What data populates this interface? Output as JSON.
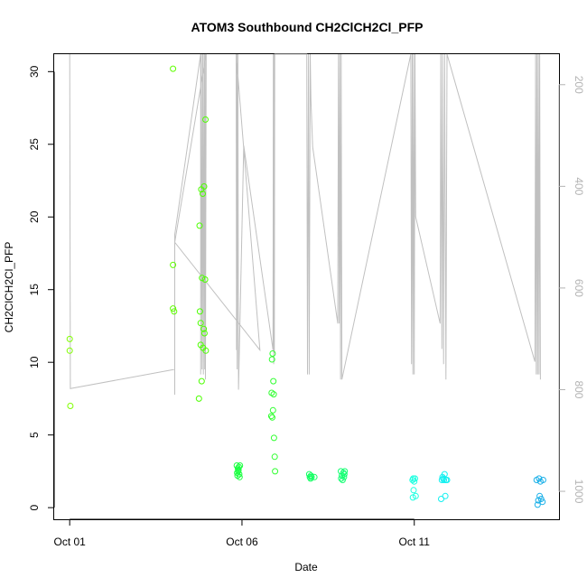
{
  "chart_data": {
    "type": "scatter",
    "title": "ATOM3 Southbound CH2ClCH2Cl_PFP",
    "xlabel": "Date",
    "ylabel": "CH2ClCH2Cl_PFP",
    "x_start_label": "Oct 01",
    "xlim_days": [
      -0.45,
      14.2
    ],
    "ylim": [
      -0.8,
      31.2
    ],
    "y_ticks": [
      0,
      5,
      10,
      15,
      20,
      25,
      30
    ],
    "x_ticks": [
      {
        "label": "Oct 01",
        "day": 0
      },
      {
        "label": "Oct 06",
        "day": 5
      },
      {
        "label": "Oct 11",
        "day": 10
      }
    ],
    "right_axis": {
      "description": "pressure (reversed)",
      "lim": [
        1055,
        140
      ],
      "ticks": [
        200,
        400,
        600,
        800,
        1000
      ],
      "color": "#b3b3b3"
    },
    "grid": false,
    "points": [
      {
        "day": 0.0,
        "y": 11.6,
        "color": "#80ff00"
      },
      {
        "day": 0.0,
        "y": 10.8,
        "color": "#80ff00"
      },
      {
        "day": 0.02,
        "y": 7.0,
        "color": "#80ff00"
      },
      {
        "day": 3.0,
        "y": 30.2,
        "color": "#5eff00"
      },
      {
        "day": 3.0,
        "y": 16.7,
        "color": "#5eff00"
      },
      {
        "day": 3.0,
        "y": 13.7,
        "color": "#5eff00"
      },
      {
        "day": 3.03,
        "y": 13.5,
        "color": "#5eff00"
      },
      {
        "day": 3.75,
        "y": 7.5,
        "color": "#4cff00"
      },
      {
        "day": 3.77,
        "y": 19.4,
        "color": "#4cff00"
      },
      {
        "day": 3.78,
        "y": 13.5,
        "color": "#4cff00"
      },
      {
        "day": 3.8,
        "y": 12.7,
        "color": "#4cff00"
      },
      {
        "day": 3.8,
        "y": 11.2,
        "color": "#4cff00"
      },
      {
        "day": 3.82,
        "y": 21.9,
        "color": "#4cff00"
      },
      {
        "day": 3.83,
        "y": 8.7,
        "color": "#4cff00"
      },
      {
        "day": 3.84,
        "y": 15.8,
        "color": "#4cff00"
      },
      {
        "day": 3.86,
        "y": 21.6,
        "color": "#4cff00"
      },
      {
        "day": 3.87,
        "y": 11.0,
        "color": "#4cff00"
      },
      {
        "day": 3.89,
        "y": 12.3,
        "color": "#4cff00"
      },
      {
        "day": 3.9,
        "y": 22.1,
        "color": "#4cff00"
      },
      {
        "day": 3.91,
        "y": 12.0,
        "color": "#4cff00"
      },
      {
        "day": 3.93,
        "y": 15.7,
        "color": "#4cff00"
      },
      {
        "day": 3.94,
        "y": 26.7,
        "color": "#4cff00"
      },
      {
        "day": 3.95,
        "y": 10.8,
        "color": "#4cff00"
      },
      {
        "day": 4.85,
        "y": 2.9,
        "color": "#1aff40"
      },
      {
        "day": 4.86,
        "y": 2.4,
        "color": "#1aff40"
      },
      {
        "day": 4.87,
        "y": 2.2,
        "color": "#1aff40"
      },
      {
        "day": 4.88,
        "y": 2.7,
        "color": "#1aff40"
      },
      {
        "day": 4.89,
        "y": 2.5,
        "color": "#1aff40"
      },
      {
        "day": 4.9,
        "y": 2.6,
        "color": "#1aff40"
      },
      {
        "day": 4.91,
        "y": 2.8,
        "color": "#1aff40"
      },
      {
        "day": 4.92,
        "y": 2.3,
        "color": "#1aff40"
      },
      {
        "day": 4.93,
        "y": 2.1,
        "color": "#1aff40"
      },
      {
        "day": 4.94,
        "y": 2.9,
        "color": "#1aff40"
      },
      {
        "day": 5.85,
        "y": 6.3,
        "color": "#30ff30"
      },
      {
        "day": 5.86,
        "y": 7.9,
        "color": "#30ff30"
      },
      {
        "day": 5.87,
        "y": 10.2,
        "color": "#30ff30"
      },
      {
        "day": 5.88,
        "y": 6.2,
        "color": "#30ff30"
      },
      {
        "day": 5.89,
        "y": 10.6,
        "color": "#30ff30"
      },
      {
        "day": 5.9,
        "y": 6.7,
        "color": "#30ff30"
      },
      {
        "day": 5.91,
        "y": 8.7,
        "color": "#30ff30"
      },
      {
        "day": 5.92,
        "y": 7.8,
        "color": "#30ff30"
      },
      {
        "day": 5.93,
        "y": 4.8,
        "color": "#30ff30"
      },
      {
        "day": 5.95,
        "y": 3.5,
        "color": "#30ff30"
      },
      {
        "day": 5.96,
        "y": 2.5,
        "color": "#30ff30"
      },
      {
        "day": 6.95,
        "y": 2.3,
        "color": "#10ff60"
      },
      {
        "day": 6.97,
        "y": 2.1,
        "color": "#10ff60"
      },
      {
        "day": 6.99,
        "y": 2.0,
        "color": "#10ff60"
      },
      {
        "day": 7.0,
        "y": 2.2,
        "color": "#10ff60"
      },
      {
        "day": 7.02,
        "y": 2.1,
        "color": "#10ff60"
      },
      {
        "day": 7.1,
        "y": 2.1,
        "color": "#10ff60"
      },
      {
        "day": 7.87,
        "y": 2.5,
        "color": "#10ff70"
      },
      {
        "day": 7.88,
        "y": 2.0,
        "color": "#10ff70"
      },
      {
        "day": 7.9,
        "y": 2.2,
        "color": "#10ff70"
      },
      {
        "day": 7.92,
        "y": 1.9,
        "color": "#10ff70"
      },
      {
        "day": 7.94,
        "y": 2.4,
        "color": "#10ff70"
      },
      {
        "day": 7.96,
        "y": 2.1,
        "color": "#10ff70"
      },
      {
        "day": 7.97,
        "y": 2.3,
        "color": "#10ff70"
      },
      {
        "day": 7.98,
        "y": 2.5,
        "color": "#10ff70"
      },
      {
        "day": 9.95,
        "y": 1.9,
        "color": "#1affe0"
      },
      {
        "day": 9.96,
        "y": 0.7,
        "color": "#1affe0"
      },
      {
        "day": 9.97,
        "y": 2.0,
        "color": "#1affe0"
      },
      {
        "day": 9.98,
        "y": 1.2,
        "color": "#1affe0"
      },
      {
        "day": 10.0,
        "y": 1.8,
        "color": "#1affe0"
      },
      {
        "day": 10.02,
        "y": 2.0,
        "color": "#1affe0"
      },
      {
        "day": 10.04,
        "y": 0.8,
        "color": "#1affe0"
      },
      {
        "day": 10.78,
        "y": 0.6,
        "color": "#10f0f0"
      },
      {
        "day": 10.8,
        "y": 1.9,
        "color": "#10f0f0"
      },
      {
        "day": 10.82,
        "y": 2.1,
        "color": "#10f0f0"
      },
      {
        "day": 10.84,
        "y": 2.0,
        "color": "#10f0f0"
      },
      {
        "day": 10.86,
        "y": 1.9,
        "color": "#10f0f0"
      },
      {
        "day": 10.88,
        "y": 2.3,
        "color": "#10f0f0"
      },
      {
        "day": 10.9,
        "y": 0.8,
        "color": "#10f0f0"
      },
      {
        "day": 10.92,
        "y": 1.9,
        "color": "#10f0f0"
      },
      {
        "day": 10.95,
        "y": 1.9,
        "color": "#10f0f0"
      },
      {
        "day": 13.55,
        "y": 1.9,
        "color": "#1ab0e8"
      },
      {
        "day": 13.58,
        "y": 0.2,
        "color": "#1ab0e8"
      },
      {
        "day": 13.6,
        "y": 0.5,
        "color": "#1ab0e8"
      },
      {
        "day": 13.62,
        "y": 2.0,
        "color": "#1ab0e8"
      },
      {
        "day": 13.64,
        "y": 0.8,
        "color": "#1ab0e8"
      },
      {
        "day": 13.66,
        "y": 1.8,
        "color": "#1ab0e8"
      },
      {
        "day": 13.68,
        "y": 0.6,
        "color": "#1ab0e8"
      },
      {
        "day": 13.72,
        "y": 0.4,
        "color": "#1ab0e8"
      },
      {
        "day": 13.74,
        "y": 1.9,
        "color": "#1ab0e8"
      }
    ],
    "pressure_line": {
      "name": "pressure",
      "color": "#c0c0c0",
      "points": [
        [
          0.0,
          140
        ],
        [
          0.02,
          798
        ],
        [
          3.05,
          760
        ],
        [
          3.05,
          810
        ],
        [
          3.05,
          495
        ],
        [
          3.8,
          140
        ],
        [
          3.8,
          770
        ],
        [
          3.82,
          140
        ],
        [
          3.84,
          760
        ],
        [
          3.86,
          140
        ],
        [
          3.88,
          770
        ],
        [
          3.9,
          140
        ],
        [
          3.92,
          760
        ],
        [
          3.93,
          140
        ],
        [
          3.94,
          780
        ],
        [
          3.96,
          140
        ],
        [
          3.05,
          510
        ],
        [
          5.52,
          722
        ],
        [
          4.83,
          140
        ],
        [
          4.84,
          722
        ],
        [
          4.85,
          140
        ],
        [
          4.86,
          760
        ],
        [
          4.88,
          140
        ],
        [
          4.9,
          800
        ],
        [
          5.05,
          320
        ],
        [
          5.9,
          722
        ],
        [
          5.91,
          140
        ],
        [
          5.92,
          750
        ],
        [
          5.93,
          140
        ],
        [
          5.94,
          728
        ],
        [
          5.95,
          140
        ],
        [
          6.88,
          140
        ],
        [
          6.9,
          770
        ],
        [
          6.93,
          140
        ],
        [
          6.95,
          770
        ],
        [
          6.98,
          140
        ],
        [
          7.0,
          230
        ],
        [
          7.05,
          322
        ],
        [
          7.78,
          670
        ],
        [
          7.8,
          140
        ],
        [
          7.82,
          670
        ],
        [
          7.84,
          140
        ],
        [
          7.86,
          780
        ],
        [
          7.88,
          140
        ],
        [
          7.9,
          780
        ],
        [
          9.9,
          140
        ],
        [
          9.92,
          750
        ],
        [
          9.94,
          140
        ],
        [
          9.96,
          770
        ],
        [
          9.98,
          140
        ],
        [
          10.0,
          770
        ],
        [
          10.02,
          140
        ],
        [
          10.04,
          460
        ],
        [
          10.75,
          670
        ],
        [
          10.77,
          140
        ],
        [
          10.8,
          720
        ],
        [
          10.82,
          140
        ],
        [
          10.85,
          750
        ],
        [
          10.88,
          140
        ],
        [
          10.92,
          780
        ],
        [
          10.95,
          140
        ],
        [
          13.5,
          745
        ],
        [
          13.52,
          140
        ],
        [
          13.54,
          770
        ],
        [
          13.56,
          140
        ],
        [
          13.58,
          770
        ],
        [
          13.6,
          140
        ],
        [
          13.62,
          770
        ],
        [
          13.64,
          140
        ],
        [
          13.66,
          780
        ]
      ]
    }
  }
}
